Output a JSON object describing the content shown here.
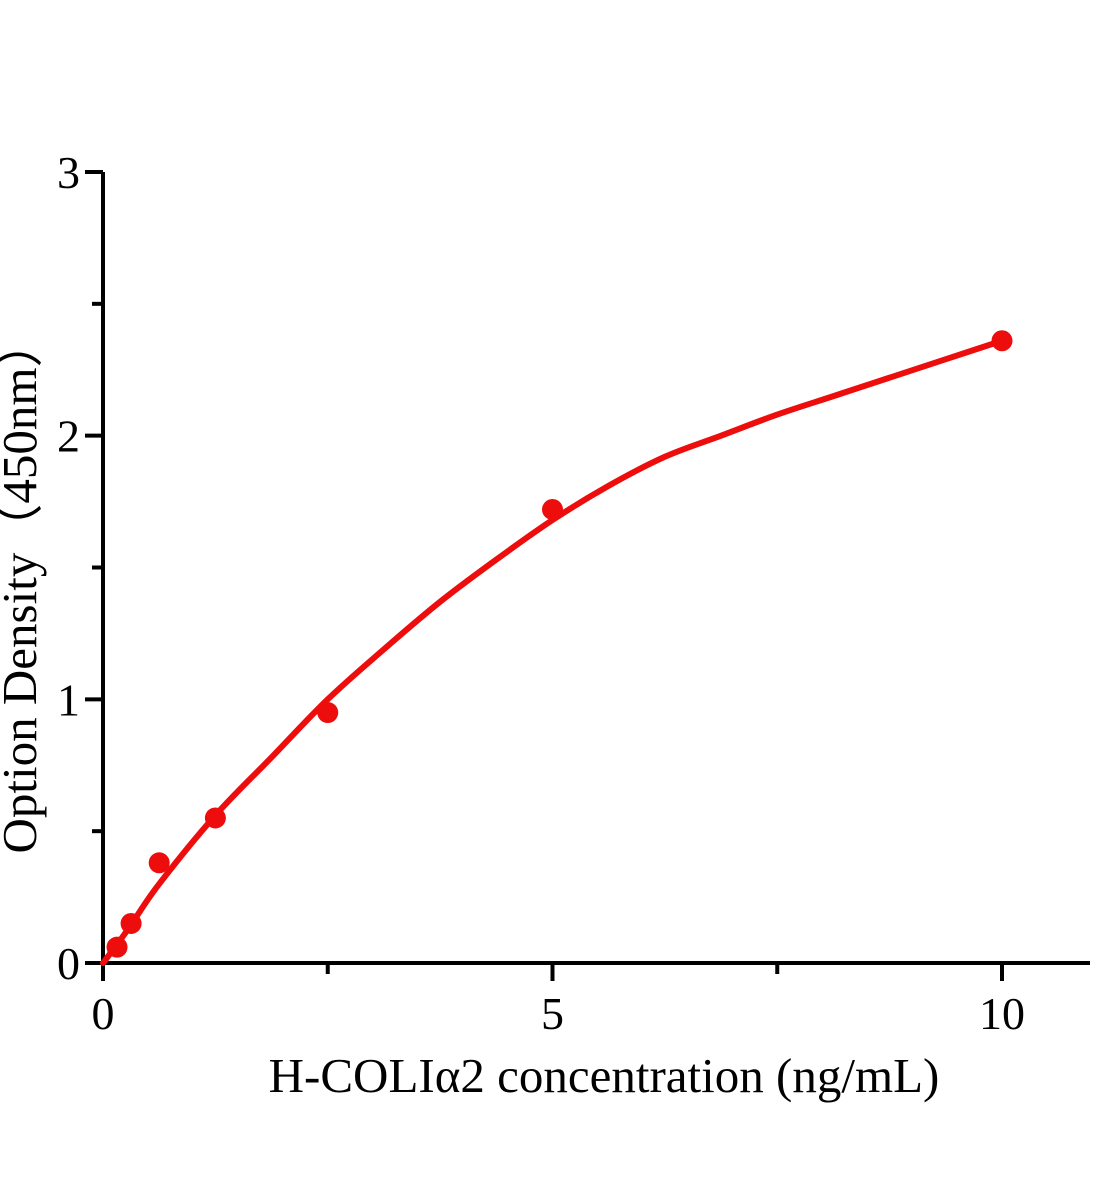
{
  "chart_data": {
    "type": "scatter",
    "title": "",
    "xlabel": "H-COLIα2 concentration (ng/mL)",
    "ylabel": "Option Density（450nm）",
    "grid": false,
    "legend": "none",
    "x_axis": {
      "min": 0,
      "max": 11,
      "major_ticks": [
        0,
        5,
        10
      ],
      "major_tick_labels": [
        "0",
        "5",
        "10"
      ],
      "minor_ticks": [
        2.5,
        7.5
      ]
    },
    "y_axis": {
      "min": 0,
      "max": 3,
      "major_ticks": [
        0,
        1,
        2,
        3
      ],
      "major_tick_labels": [
        "0",
        "1",
        "2",
        "3"
      ],
      "minor_ticks": [
        0.5,
        1.5,
        2.5
      ]
    },
    "series": [
      {
        "name": "standard-data-points",
        "type": "scatter",
        "marker": "circle",
        "color": "#ee0d0d",
        "points": [
          {
            "x": 0.156,
            "y": 0.06
          },
          {
            "x": 0.3125,
            "y": 0.15
          },
          {
            "x": 0.625,
            "y": 0.38
          },
          {
            "x": 1.25,
            "y": 0.55
          },
          {
            "x": 2.5,
            "y": 0.95
          },
          {
            "x": 5,
            "y": 1.72
          },
          {
            "x": 10,
            "y": 2.36
          }
        ]
      },
      {
        "name": "fitted-curve",
        "type": "line",
        "color": "#ee0d0d",
        "points": [
          {
            "x": 0,
            "y": 0.0
          },
          {
            "x": 0.156,
            "y": 0.07
          },
          {
            "x": 0.3125,
            "y": 0.145
          },
          {
            "x": 0.625,
            "y": 0.3
          },
          {
            "x": 1.25,
            "y": 0.56
          },
          {
            "x": 1.875,
            "y": 0.78
          },
          {
            "x": 2.5,
            "y": 1.0
          },
          {
            "x": 3.125,
            "y": 1.19
          },
          {
            "x": 3.75,
            "y": 1.37
          },
          {
            "x": 4.375,
            "y": 1.53
          },
          {
            "x": 5,
            "y": 1.68
          },
          {
            "x": 5.625,
            "y": 1.81
          },
          {
            "x": 6.25,
            "y": 1.92
          },
          {
            "x": 6.875,
            "y": 2.0
          },
          {
            "x": 7.5,
            "y": 2.08
          },
          {
            "x": 8.125,
            "y": 2.15
          },
          {
            "x": 8.75,
            "y": 2.22
          },
          {
            "x": 9.375,
            "y": 2.29
          },
          {
            "x": 10,
            "y": 2.36
          }
        ]
      }
    ],
    "colors": {
      "accent": "#ee0d0d",
      "axis": "#000000",
      "background": "#ffffff"
    }
  }
}
